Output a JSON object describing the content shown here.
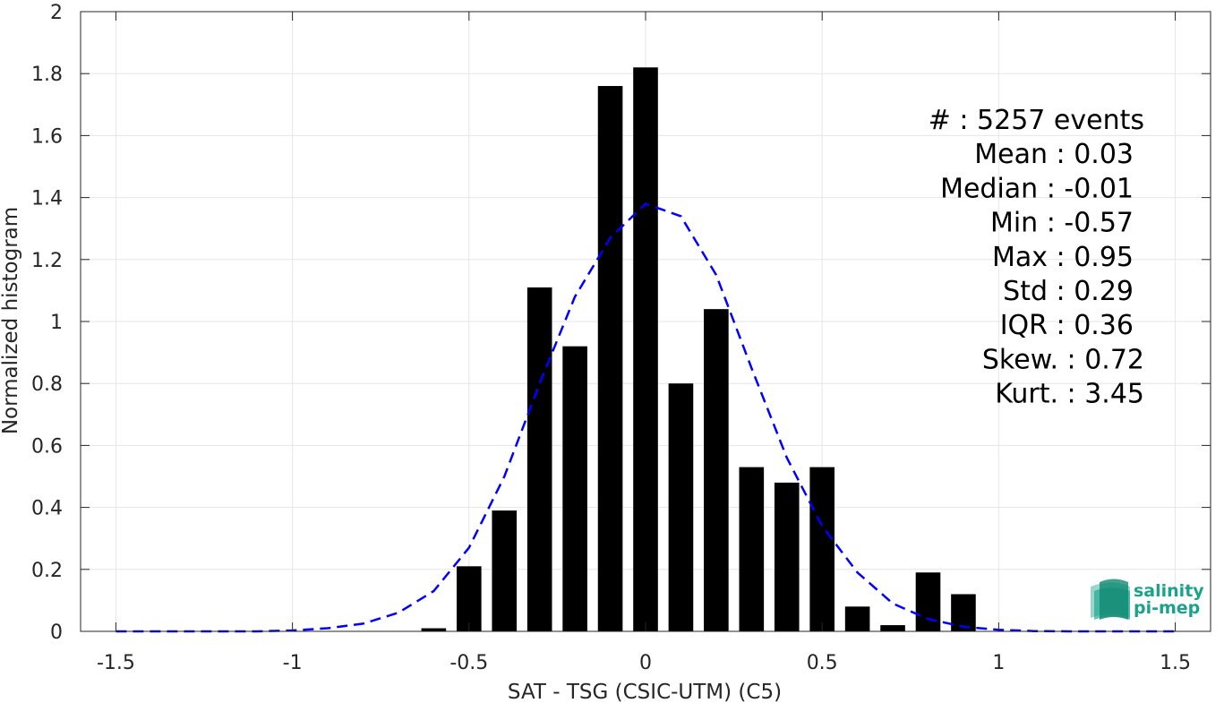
{
  "chart_data": {
    "type": "bar",
    "xlabel": "SAT - TSG (CSIC-UTM) (C5)",
    "ylabel": "Normalized histogram",
    "xlim": [
      -1.6,
      1.6
    ],
    "ylim": [
      0,
      2
    ],
    "xticks": [
      -1.5,
      -1,
      -0.5,
      0,
      0.5,
      1,
      1.5
    ],
    "xtick_labels": [
      "-1.5",
      "-1",
      "-0.5",
      "0",
      "0.5",
      "1",
      "1.5"
    ],
    "yticks": [
      0,
      0.2,
      0.4,
      0.6,
      0.8,
      1,
      1.2,
      1.4,
      1.6,
      1.8,
      2
    ],
    "ytick_labels": [
      "0",
      "0.2",
      "0.4",
      "0.6",
      "0.8",
      "1",
      "1.2",
      "1.4",
      "1.6",
      "1.8",
      "2"
    ],
    "grid": true,
    "bar_width": 0.07,
    "bars": {
      "x": [
        -0.6,
        -0.5,
        -0.4,
        -0.3,
        -0.2,
        -0.1,
        0,
        0.1,
        0.2,
        0.3,
        0.4,
        0.5,
        0.6,
        0.7,
        0.8,
        0.9
      ],
      "values": [
        0.01,
        0.21,
        0.39,
        1.11,
        0.92,
        1.76,
        1.82,
        0.8,
        1.04,
        0.53,
        0.48,
        0.53,
        0.08,
        0.02,
        0.19,
        0.12
      ],
      "color": "#000000"
    },
    "fit_curve": {
      "style": "dashed",
      "color": "#0000ff",
      "x": [
        -1.5,
        -1.4,
        -1.3,
        -1.2,
        -1.1,
        -1.0,
        -0.9,
        -0.8,
        -0.7,
        -0.6,
        -0.5,
        -0.4,
        -0.3,
        -0.2,
        -0.1,
        0.0,
        0.1,
        0.2,
        0.3,
        0.4,
        0.5,
        0.6,
        0.7,
        0.8,
        0.9,
        1.0,
        1.1,
        1.2,
        1.3,
        1.4,
        1.5
      ],
      "y": [
        0,
        0,
        0,
        0,
        0,
        0.003,
        0.01,
        0.025,
        0.06,
        0.13,
        0.27,
        0.5,
        0.8,
        1.08,
        1.27,
        1.38,
        1.34,
        1.15,
        0.85,
        0.56,
        0.34,
        0.19,
        0.09,
        0.04,
        0.015,
        0.005,
        0.001,
        0,
        0,
        0,
        0
      ]
    },
    "annotations": [
      {
        "label": "#  : 5257 events",
        "align": "end"
      },
      {
        "label": "Mean : 0.03",
        "align": "end"
      },
      {
        "label": "Median : -0.01",
        "align": "end"
      },
      {
        "label": "Min : -0.57",
        "align": "end"
      },
      {
        "label": "Max : 0.95",
        "align": "end"
      },
      {
        "label": "Std : 0.29",
        "align": "end"
      },
      {
        "label": "IQR : 0.36",
        "align": "end"
      },
      {
        "label": "Skew. : 0.72",
        "align": "end"
      },
      {
        "label": "Kurt. : 3.45",
        "align": "end"
      }
    ]
  },
  "logo": {
    "line1": "salinity",
    "line2": "pi-mep",
    "color": "#1aa38a"
  }
}
